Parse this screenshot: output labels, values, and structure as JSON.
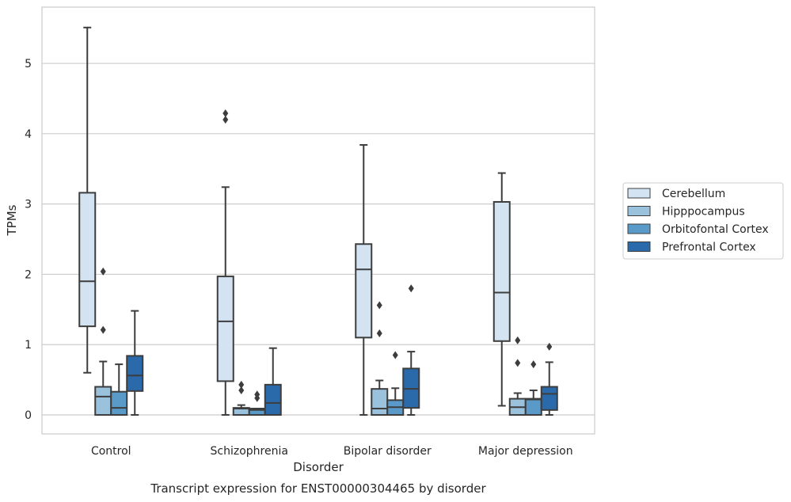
{
  "chart_data": {
    "type": "boxplot",
    "title": "Transcript expression for ENST00000304465 by disorder",
    "xlabel": "Disorder",
    "ylabel": "TPMs",
    "ylim": [
      -0.27,
      5.8
    ],
    "yticks": [
      0,
      1,
      2,
      3,
      4,
      5
    ],
    "grid": true,
    "legend_position": "right",
    "categories": [
      "Control",
      "Schizophrenia",
      "Bipolar disorder",
      "Major depression"
    ],
    "series": [
      {
        "name": "Cerebellum",
        "color": "#d3e3f2",
        "boxes": [
          {
            "whislo": 0.6,
            "q1": 1.26,
            "med": 1.9,
            "q3": 3.16,
            "whishi": 5.51,
            "fliers": []
          },
          {
            "whislo": 0.0,
            "q1": 0.48,
            "med": 1.33,
            "q3": 1.97,
            "whishi": 3.24,
            "fliers": [
              4.29,
              4.2
            ]
          },
          {
            "whislo": 0.0,
            "q1": 1.1,
            "med": 2.07,
            "q3": 2.43,
            "whishi": 3.84,
            "fliers": []
          },
          {
            "whislo": 0.13,
            "q1": 1.05,
            "med": 1.74,
            "q3": 3.03,
            "whishi": 3.44,
            "fliers": []
          }
        ]
      },
      {
        "name": "Hipppocampus",
        "color": "#9ac2dd",
        "boxes": [
          {
            "whislo": 0.0,
            "q1": 0.0,
            "med": 0.26,
            "q3": 0.4,
            "whishi": 0.76,
            "fliers": [
              2.04,
              1.21
            ]
          },
          {
            "whislo": 0.0,
            "q1": 0.0,
            "med": 0.09,
            "q3": 0.1,
            "whishi": 0.14,
            "fliers": [
              0.43,
              0.35
            ]
          },
          {
            "whislo": 0.0,
            "q1": 0.0,
            "med": 0.09,
            "q3": 0.37,
            "whishi": 0.49,
            "fliers": [
              1.56,
              1.16
            ]
          },
          {
            "whislo": 0.0,
            "q1": 0.0,
            "med": 0.11,
            "q3": 0.23,
            "whishi": 0.31,
            "fliers": [
              1.06,
              0.74
            ]
          }
        ]
      },
      {
        "name": "Orbitofontal Cortex",
        "color": "#5a9ac9",
        "boxes": [
          {
            "whislo": 0.0,
            "q1": 0.0,
            "med": 0.1,
            "q3": 0.33,
            "whishi": 0.72,
            "fliers": []
          },
          {
            "whislo": 0.0,
            "q1": 0.0,
            "med": 0.07,
            "q3": 0.09,
            "whishi": 0.09,
            "fliers": [
              0.29,
              0.24
            ]
          },
          {
            "whislo": 0.0,
            "q1": 0.0,
            "med": 0.11,
            "q3": 0.21,
            "whishi": 0.38,
            "fliers": [
              0.85
            ]
          },
          {
            "whislo": 0.0,
            "q1": 0.0,
            "med": 0.22,
            "q3": 0.23,
            "whishi": 0.35,
            "fliers": [
              0.72
            ]
          }
        ]
      },
      {
        "name": "Prefrontal Cortex",
        "color": "#2b6aaa",
        "boxes": [
          {
            "whislo": 0.0,
            "q1": 0.34,
            "med": 0.56,
            "q3": 0.84,
            "whishi": 1.48,
            "fliers": []
          },
          {
            "whislo": 0.0,
            "q1": 0.0,
            "med": 0.17,
            "q3": 0.43,
            "whishi": 0.95,
            "fliers": []
          },
          {
            "whislo": 0.0,
            "q1": 0.1,
            "med": 0.37,
            "q3": 0.66,
            "whishi": 0.9,
            "fliers": [
              1.8
            ]
          },
          {
            "whislo": 0.0,
            "q1": 0.07,
            "med": 0.3,
            "q3": 0.4,
            "whishi": 0.75,
            "fliers": [
              0.97
            ]
          }
        ]
      }
    ]
  }
}
